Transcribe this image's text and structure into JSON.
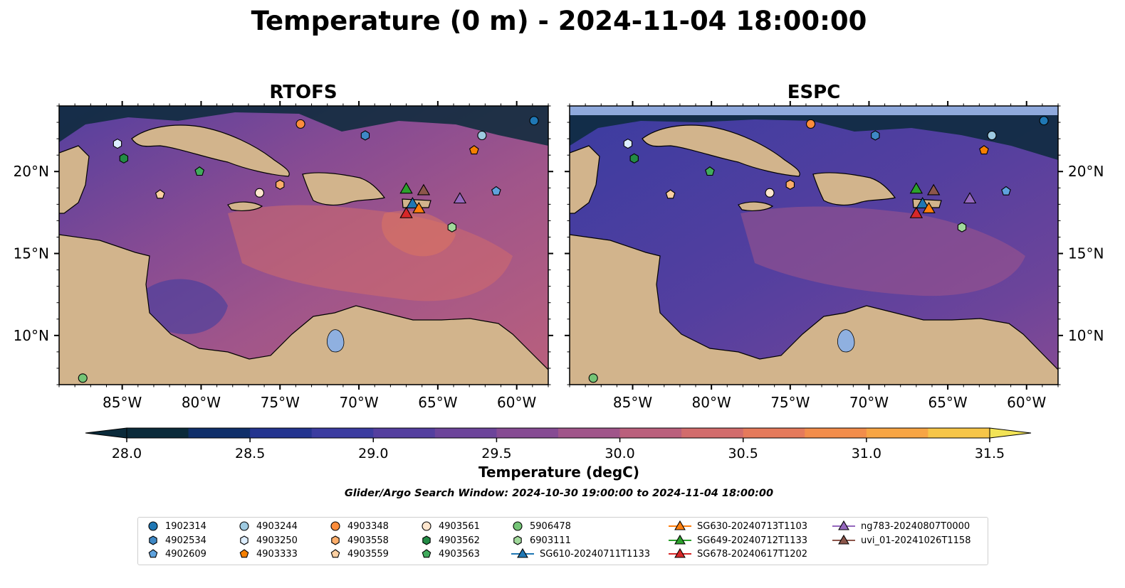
{
  "chart_data": {
    "type": "heatmap",
    "title": "Temperature (0 m) - 2024-11-04 18:00:00",
    "panels": [
      {
        "title": "RTOFS",
        "colorfield": "warmer"
      },
      {
        "title": "ESPC",
        "colorfield": "cooler"
      }
    ],
    "lon_range": [
      -89,
      -58
    ],
    "lat_range": [
      7,
      24
    ],
    "lon_ticks": [
      -85,
      -80,
      -75,
      -70,
      -65,
      -60
    ],
    "lon_tick_labels": [
      "85°W",
      "80°W",
      "75°W",
      "70°W",
      "65°W",
      "60°W"
    ],
    "lat_ticks": [
      10,
      15,
      20
    ],
    "lat_tick_labels": [
      "10°N",
      "15°N",
      "20°N"
    ],
    "colorbar": {
      "label": "Temperature (degC)",
      "vmin": 28.0,
      "vmax": 31.5,
      "step": 0.25,
      "tick_values": [
        28.0,
        28.5,
        29.0,
        29.5,
        30.0,
        30.5,
        31.0,
        31.5
      ],
      "tick_labels": [
        "28.0",
        "28.5",
        "29.0",
        "29.5",
        "30.0",
        "30.5",
        "31.0",
        "31.5"
      ],
      "colors": [
        "#0a2a3a",
        "#0f2f6a",
        "#23348f",
        "#3b3ca0",
        "#543f9f",
        "#6c449a",
        "#864b93",
        "#a0558a",
        "#ba607c",
        "#d26c6c",
        "#e57a5b",
        "#f28d4b",
        "#f7a544",
        "#f6c548",
        "#f2e356"
      ]
    },
    "search_window": "Glider/Argo Search Window: 2024-10-30 19:00:00 to 2024-11-04 18:00:00",
    "platforms": [
      {
        "id": "1902314",
        "marker": "circle",
        "color": "#1f77b4",
        "lon": -58.9,
        "lat": 23.1
      },
      {
        "id": "4902534",
        "marker": "hexagon",
        "color": "#3f88c5",
        "lon": -69.6,
        "lat": 22.2
      },
      {
        "id": "4902609",
        "marker": "pentagon",
        "color": "#5fa2dd",
        "lon": -61.3,
        "lat": 18.8
      },
      {
        "id": "4903244",
        "marker": "circle",
        "color": "#9ecae1",
        "lon": -62.2,
        "lat": 22.2
      },
      {
        "id": "4903250",
        "marker": "hexagon",
        "color": "#ddeeff",
        "lon": -85.3,
        "lat": 21.7
      },
      {
        "id": "4903333",
        "marker": "pentagon",
        "color": "#f57f00",
        "lon": -62.7,
        "lat": 21.3
      },
      {
        "id": "4903348",
        "marker": "circle",
        "color": "#fd8d3c",
        "lon": -73.7,
        "lat": 22.9
      },
      {
        "id": "4903558",
        "marker": "hexagon",
        "color": "#fdae6b",
        "lon": -75.0,
        "lat": 19.2
      },
      {
        "id": "4903559",
        "marker": "pentagon",
        "color": "#fdd0a2",
        "lon": -82.6,
        "lat": 18.6
      },
      {
        "id": "4903561",
        "marker": "circle",
        "color": "#fee6ce",
        "lon": -76.3,
        "lat": 18.7
      },
      {
        "id": "4903562",
        "marker": "hexagon",
        "color": "#238b45",
        "lon": -84.9,
        "lat": 20.8
      },
      {
        "id": "4903563",
        "marker": "pentagon",
        "color": "#41ab5d",
        "lon": -80.1,
        "lat": 20.0
      },
      {
        "id": "5906478",
        "marker": "circle",
        "color": "#74c476",
        "lon": -87.5,
        "lat": 7.4
      },
      {
        "id": "6903111",
        "marker": "hexagon",
        "color": "#a1d99b",
        "lon": -64.1,
        "lat": 16.6
      }
    ],
    "gliders": [
      {
        "id": "SG610-20240711T1133",
        "color": "#1f77b4",
        "lon": -66.6,
        "lat": 17.9
      },
      {
        "id": "SG630-20240713T1103",
        "color": "#ff7f0e",
        "lon": -66.2,
        "lat": 17.6
      },
      {
        "id": "SG649-20240712T1133",
        "color": "#2ca02c",
        "lon": -67.0,
        "lat": 18.8
      },
      {
        "id": "SG678-20240617T1202",
        "color": "#d62728",
        "lon": -67.0,
        "lat": 17.3
      },
      {
        "id": "ng783-20240807T0000",
        "color": "#9467bd",
        "lon": -63.6,
        "lat": 18.2
      },
      {
        "id": "uvi_01-20241026T1158",
        "color": "#8c564b",
        "lon": -65.9,
        "lat": 18.7
      }
    ]
  }
}
